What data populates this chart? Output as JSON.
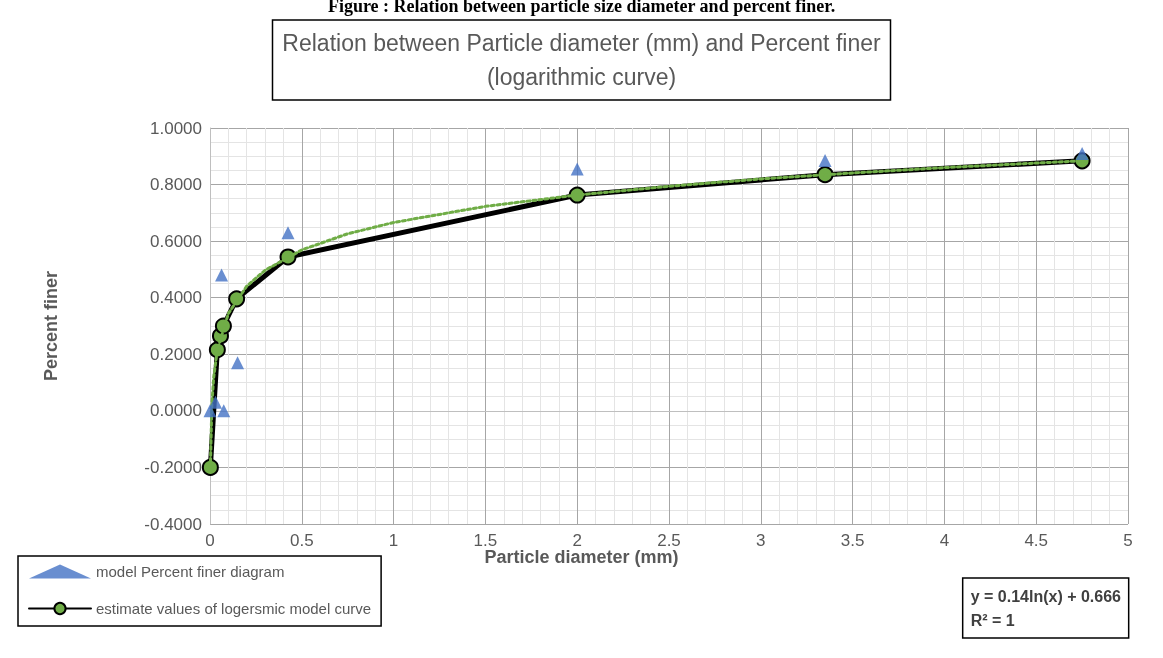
{
  "chart_data": {
    "type": "line",
    "title": "Relation between Particle diameter (mm) and Percent finer\n(logarithmic curve)",
    "subtitle": "Figure : Relation between particle size diameter and percent finer.",
    "xlabel": "Particle diameter (mm)",
    "ylabel": "Percent finer",
    "annotations": [
      "y = 0.14ln(x) + 0.666\nR² = 1"
    ],
    "xlim": [
      0,
      5
    ],
    "xticks": [
      0,
      0.5,
      1,
      1.5,
      2,
      2.5,
      3,
      3.5,
      4,
      4.5,
      5
    ],
    "ylim": [
      -0.4,
      1
    ],
    "yticks": [
      {
        "value": -0.4,
        "label": "-0.4000"
      },
      {
        "value": -0.2,
        "label": "-0.2000"
      },
      {
        "value": 0,
        "label": "0.0000"
      },
      {
        "value": 0.2,
        "label": "0.2000"
      },
      {
        "value": 0.4,
        "label": "0.4000"
      },
      {
        "value": 0.6,
        "label": "0.6000"
      },
      {
        "value": 0.8,
        "label": "0.8000"
      },
      {
        "value": 1,
        "label": "1.0000"
      }
    ],
    "grid": true,
    "legend": "bottom left",
    "series": [
      {
        "name": "model Percent finer diagram",
        "type": "scatter",
        "marker": "triangle",
        "color": "#4472c4",
        "x": [
          0,
          0.03,
          0.075,
          0.063,
          0.15,
          0.425,
          2,
          3.35,
          4.75
        ],
        "values": [
          0,
          0.03,
          0,
          0.48,
          0.17,
          0.63,
          0.855,
          0.885,
          0.91
        ]
      },
      {
        "name": "estimate values of logersmic model curve",
        "marker": "circle",
        "line_style": "solid",
        "color": "#000000",
        "colors": [
          "#70ad47",
          "#70ad47",
          "#70ad47",
          "#70ad47",
          "#70ad47",
          "#70ad47",
          "#70ad47",
          "#70ad47",
          "#70ad47"
        ],
        "x": [
          0.002,
          0.04,
          0.057,
          0.073,
          0.145,
          0.425,
          2,
          3.35,
          4.75
        ],
        "values": [
          -0.2,
          0.216,
          0.265,
          0.3,
          0.396,
          0.544,
          0.763,
          0.835,
          0.884
        ]
      },
      {
        "marker": "none",
        "line_style": "dotted",
        "color": "#70ad47",
        "x": [
          0.002,
          0.01,
          0.02,
          0.04,
          0.1,
          0.2,
          0.3,
          0.5,
          0.75,
          1,
          1.5,
          2,
          2.5,
          3,
          3.5,
          4,
          4.75
        ],
        "values": [
          -0.2,
          0.02,
          0.118,
          0.216,
          0.344,
          0.441,
          0.497,
          0.569,
          0.626,
          0.666,
          0.723,
          0.763,
          0.794,
          0.82,
          0.841,
          0.86,
          0.884
        ]
      }
    ]
  }
}
